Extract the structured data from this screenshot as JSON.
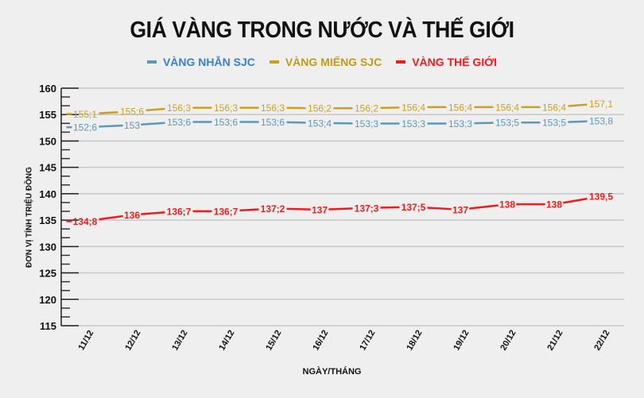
{
  "chart_data": {
    "type": "line",
    "title": "GIÁ VÀNG TRONG NƯỚC VÀ THẾ GIỚI",
    "xlabel": "NGÀY/THÁNG",
    "ylabel": "ĐƠN VỊ TÍNH TRIỆU ĐỒNG",
    "ylim": [
      115,
      160
    ],
    "yticks": [
      115,
      120,
      125,
      130,
      135,
      140,
      145,
      150,
      155,
      160
    ],
    "grid": true,
    "legend_position": "top",
    "categories": [
      "11/12",
      "12/12",
      "13/12",
      "14/12",
      "15/12",
      "16/12",
      "17/12",
      "18/12",
      "19/12",
      "20/12",
      "21/12",
      "22/12"
    ],
    "series": [
      {
        "name": "VÀNG NHẪN SJC",
        "color": "#5b98b9",
        "legend_text_color": "#3b80c6",
        "values": [
          152.6,
          153,
          153.6,
          153.6,
          153.6,
          153.4,
          153.3,
          153.3,
          153.3,
          153.5,
          153.5,
          153.8
        ],
        "labels": [
          "152;6",
          "153",
          "153;6",
          "153;6",
          "153;6",
          "153;4",
          "153;3",
          "153;3",
          "153;3",
          "153;5",
          "153;5",
          "153,8"
        ]
      },
      {
        "name": "VÀNG MIẾNG SJC",
        "color": "#c9a11f",
        "legend_text_color": "#c09a1c",
        "values": [
          155.1,
          155.6,
          156.3,
          156.3,
          156.3,
          156.2,
          156.2,
          156.4,
          156.4,
          156.4,
          156.4,
          157.1
        ],
        "labels": [
          "155;1",
          "155;6",
          "156;3",
          "156;3",
          "156;3",
          "156;2",
          "156;2",
          "156;4",
          "156;4",
          "156;4",
          "156;4",
          "157,1"
        ]
      },
      {
        "name": "VÀNG THẾ GIỚI",
        "color": "#ee1c1c",
        "legend_text_color": "#ee1c1c",
        "values": [
          134.8,
          136,
          136.7,
          136.7,
          137.2,
          137,
          137.3,
          137.5,
          137,
          138,
          138,
          139.5
        ],
        "labels": [
          "134;8",
          "136",
          "136;7",
          "136;7",
          "137;2",
          "137",
          "137;3",
          "137;5",
          "137",
          "138",
          "138",
          "139,5"
        ]
      }
    ]
  }
}
